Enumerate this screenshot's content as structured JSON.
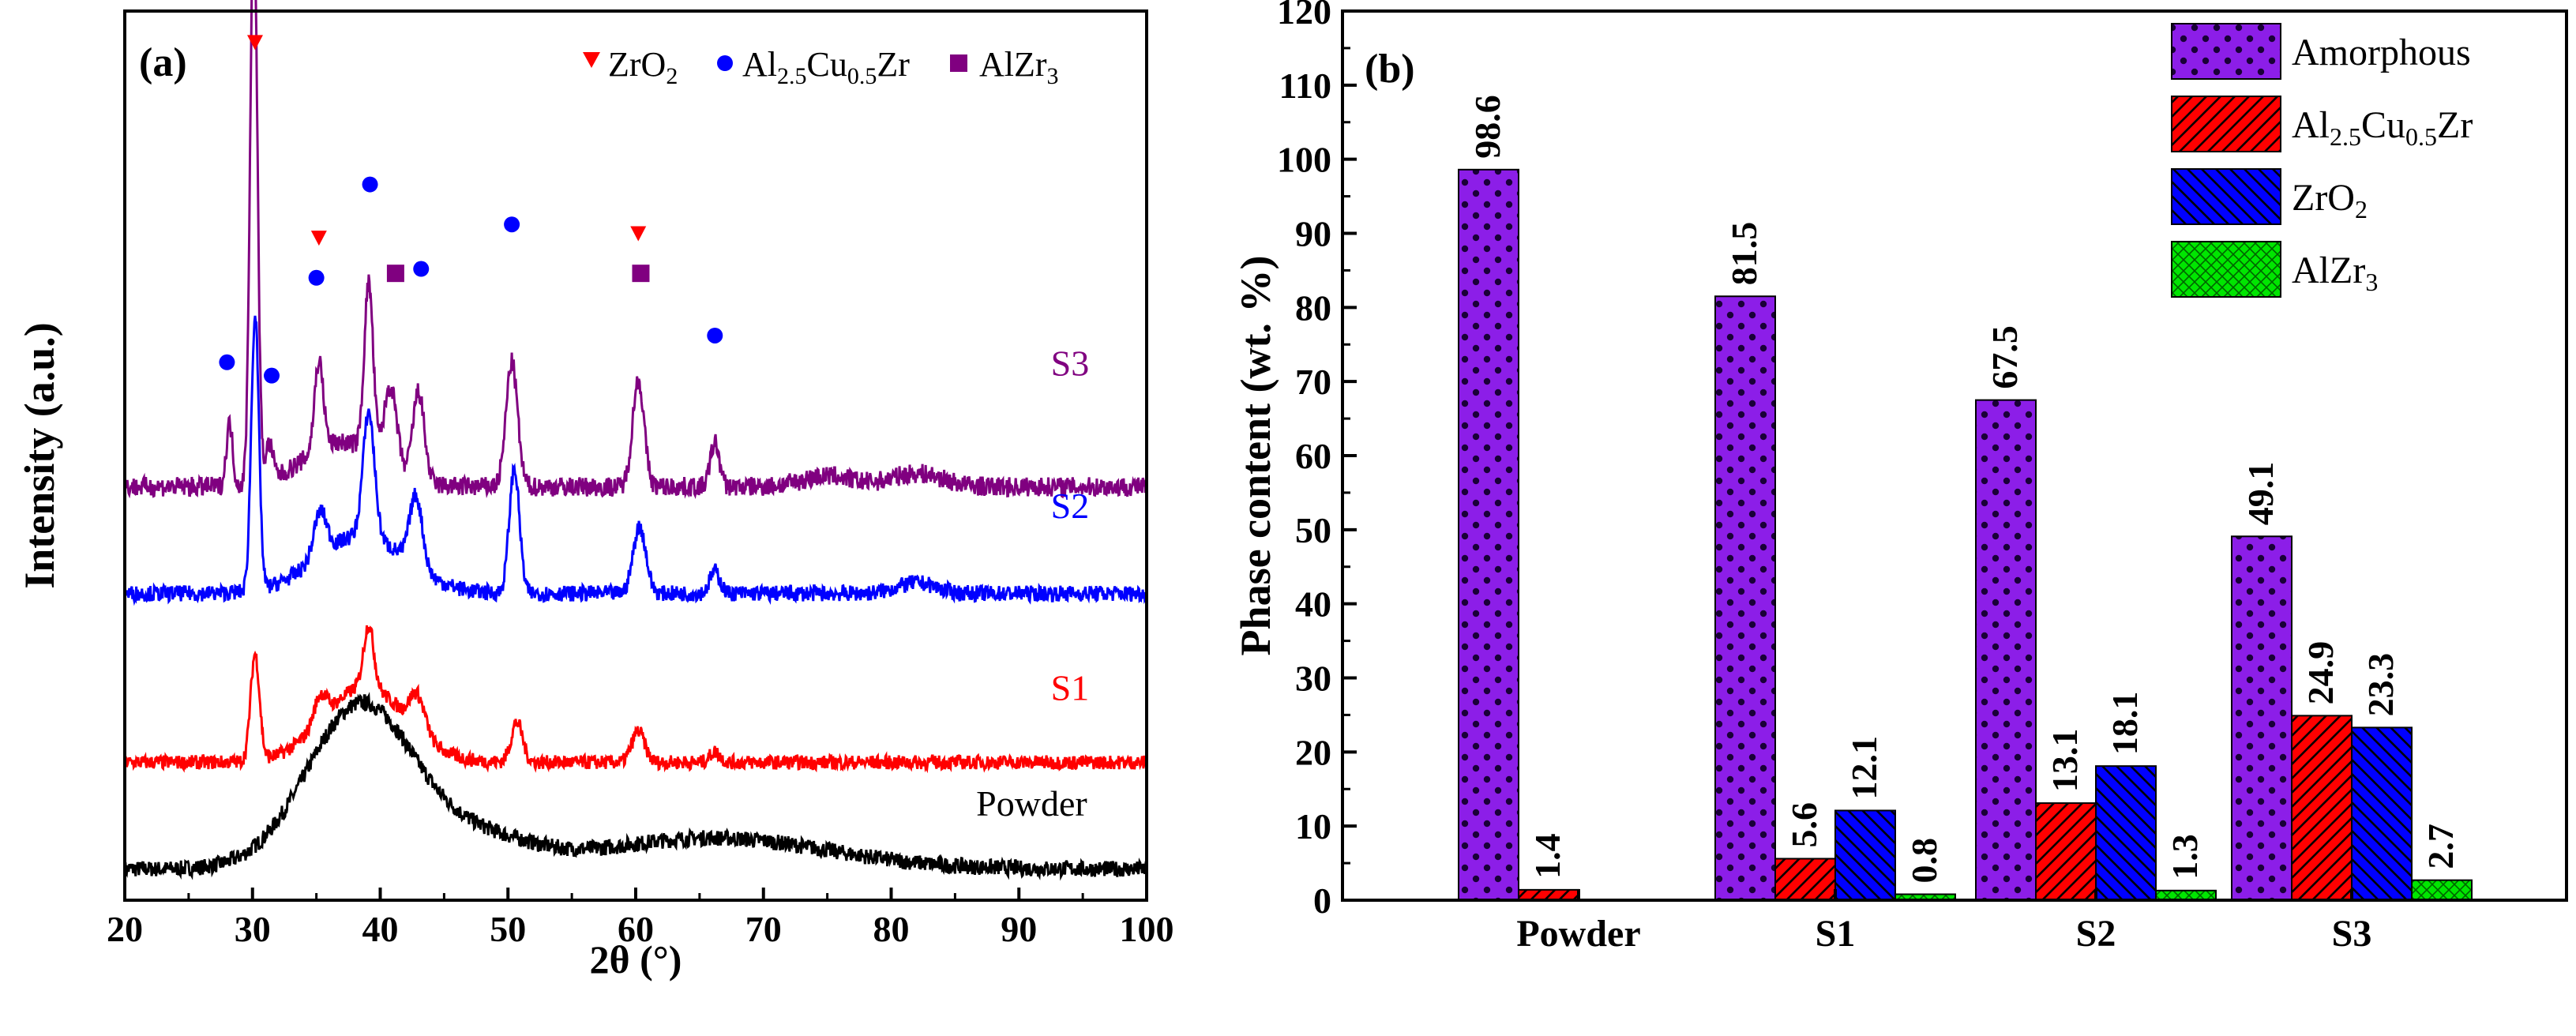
{
  "colors": {
    "powder": "#000000",
    "s1": "#ff0000",
    "s2": "#0000ff",
    "s3": "#800080",
    "amorphous": "#8c1ee8",
    "al25cu05zr": "#ff0000",
    "zro2": "#0000ff",
    "alzr3": "#00e600"
  },
  "chart_data": [
    {
      "type": "line",
      "panel_label": "(a)",
      "title": "",
      "xlabel": "2θ (°)",
      "ylabel": "Intensity (a.u.)",
      "xlim": [
        20,
        100
      ],
      "ylim": [
        0,
        1
      ],
      "x_ticks": [
        "20",
        "30",
        "40",
        "50",
        "60",
        "70",
        "80",
        "90",
        "100"
      ],
      "legend": [
        {
          "marker": "triangle-down",
          "color": "#ff0000",
          "base": "ZrO",
          "sub": "2"
        },
        {
          "marker": "circle",
          "color": "#0000ff",
          "parts": [
            [
              "Al",
              ""
            ],
            [
              "2.5",
              "sub"
            ],
            [
              "Cu",
              ""
            ],
            [
              "0.5",
              "sub"
            ],
            [
              "Zr",
              ""
            ]
          ]
        },
        {
          "marker": "square",
          "color": "#800080",
          "base": "AlZr",
          "sub": "3"
        }
      ],
      "legend_position": "top-right",
      "series": [
        {
          "name": "Powder",
          "color": "#000000",
          "baseline": 0.035,
          "noise": 0.009,
          "peaks": [
            [
              38.5,
              0.185,
              4.2
            ],
            [
              66,
              0.035,
              9
            ],
            [
              48,
              0.03,
              4
            ]
          ]
        },
        {
          "name": "S1",
          "color": "#ff0000",
          "baseline": 0.155,
          "noise": 0.008,
          "peaks": [
            [
              30.2,
              0.12,
              0.35
            ],
            [
              38.8,
              0.085,
              3.2
            ],
            [
              39.1,
              0.07,
              0.4
            ],
            [
              35.3,
              0.03,
              0.5
            ],
            [
              42.9,
              0.04,
              0.6
            ],
            [
              50.7,
              0.045,
              0.45
            ],
            [
              60.2,
              0.035,
              0.5
            ],
            [
              66.2,
              0.012,
              0.4
            ]
          ]
        },
        {
          "name": "S2",
          "color": "#0000ff",
          "baseline": 0.345,
          "noise": 0.009,
          "peaks": [
            [
              30.2,
              0.31,
              0.3
            ],
            [
              38.5,
              0.065,
              3.5
            ],
            [
              39.1,
              0.14,
              0.45
            ],
            [
              35.3,
              0.05,
              0.5
            ],
            [
              42.8,
              0.08,
              0.5
            ],
            [
              50.5,
              0.14,
              0.4
            ],
            [
              60.3,
              0.075,
              0.5
            ],
            [
              66.2,
              0.025,
              0.4
            ],
            [
              82,
              0.012,
              1.5
            ]
          ]
        },
        {
          "name": "S3",
          "color": "#800080",
          "baseline": 0.465,
          "noise": 0.011,
          "peaks": [
            [
              30.1,
              0.65,
              0.28
            ],
            [
              28.2,
              0.07,
              0.25
            ],
            [
              31.3,
              0.04,
              0.3
            ],
            [
              35.2,
              0.1,
              0.35
            ],
            [
              39.1,
              0.19,
              0.35
            ],
            [
              40.8,
              0.09,
              0.5
            ],
            [
              43.0,
              0.1,
              0.45
            ],
            [
              50.3,
              0.14,
              0.45
            ],
            [
              60.2,
              0.12,
              0.45
            ],
            [
              66.2,
              0.05,
              0.35
            ],
            [
              37,
              0.05,
              3
            ],
            [
              75,
              0.012,
              2
            ],
            [
              82,
              0.015,
              2
            ]
          ]
        }
      ],
      "curve_labels": [
        {
          "name": "Powder",
          "x": 91,
          "y": 0.095
        },
        {
          "name": "S1",
          "x": 94,
          "y": 0.225
        },
        {
          "name": "S2",
          "x": 94,
          "y": 0.43
        },
        {
          "name": "S3",
          "x": 94,
          "y": 0.59
        }
      ],
      "peak_markers": [
        {
          "phase": "ZrO2",
          "x": 30.2,
          "y": 0.965
        },
        {
          "phase": "ZrO2",
          "x": 35.2,
          "y": 0.745
        },
        {
          "phase": "ZrO2",
          "x": 60.2,
          "y": 0.75
        },
        {
          "phase": "Al2.5Cu0.5Zr",
          "x": 28.0,
          "y": 0.605
        },
        {
          "phase": "Al2.5Cu0.5Zr",
          "x": 31.5,
          "y": 0.59
        },
        {
          "phase": "Al2.5Cu0.5Zr",
          "x": 35.0,
          "y": 0.7
        },
        {
          "phase": "Al2.5Cu0.5Zr",
          "x": 39.2,
          "y": 0.805
        },
        {
          "phase": "Al2.5Cu0.5Zr",
          "x": 43.2,
          "y": 0.71
        },
        {
          "phase": "Al2.5Cu0.5Zr",
          "x": 50.3,
          "y": 0.76
        },
        {
          "phase": "Al2.5Cu0.5Zr",
          "x": 66.2,
          "y": 0.635
        },
        {
          "phase": "AlZr3",
          "x": 41.2,
          "y": 0.705
        },
        {
          "phase": "AlZr3",
          "x": 60.4,
          "y": 0.705
        }
      ]
    },
    {
      "type": "bar",
      "panel_label": "(b)",
      "title": "",
      "xlabel": "",
      "ylabel": "Phase content (wt. %)",
      "ylim": [
        0,
        120
      ],
      "y_ticks": [
        "0",
        "10",
        "20",
        "30",
        "40",
        "50",
        "60",
        "70",
        "80",
        "90",
        "100",
        "110",
        "120"
      ],
      "categories": [
        "Powder",
        "S1",
        "S2",
        "S3"
      ],
      "legend_position": "top-right",
      "series": [
        {
          "name": "Amorphous",
          "legend_parts": [
            [
              "Amorphous",
              ""
            ]
          ],
          "color": "#8c1ee8",
          "pattern": "dots",
          "values": [
            98.6,
            81.5,
            67.5,
            49.1
          ],
          "labels": [
            "98.6",
            "81.5",
            "67.5",
            "49.1"
          ]
        },
        {
          "name": "Al2.5Cu0.5Zr",
          "legend_parts": [
            [
              "Al",
              ""
            ],
            [
              "2.5",
              "sub"
            ],
            [
              "Cu",
              ""
            ],
            [
              "0.5",
              "sub"
            ],
            [
              "Zr",
              ""
            ]
          ],
          "color": "#ff0000",
          "pattern": "diag",
          "values": [
            1.4,
            5.6,
            13.1,
            24.9
          ],
          "labels": [
            "1.4",
            "5.6",
            "13.1",
            "24.9"
          ]
        },
        {
          "name": "ZrO2",
          "legend_parts": [
            [
              "ZrO",
              ""
            ],
            [
              "2",
              "sub"
            ]
          ],
          "color": "#0000ff",
          "pattern": "diag",
          "values": [
            0,
            12.1,
            18.1,
            23.3
          ],
          "labels": [
            "",
            "12.1",
            "18.1",
            "23.3"
          ]
        },
        {
          "name": "AlZr3",
          "legend_parts": [
            [
              "AlZr",
              ""
            ],
            [
              "3",
              "sub"
            ]
          ],
          "color": "#00e600",
          "pattern": "cross",
          "values": [
            0,
            0.8,
            1.3,
            2.7
          ],
          "labels": [
            "",
            "0.8",
            "1.3",
            "2.7"
          ]
        }
      ]
    }
  ]
}
